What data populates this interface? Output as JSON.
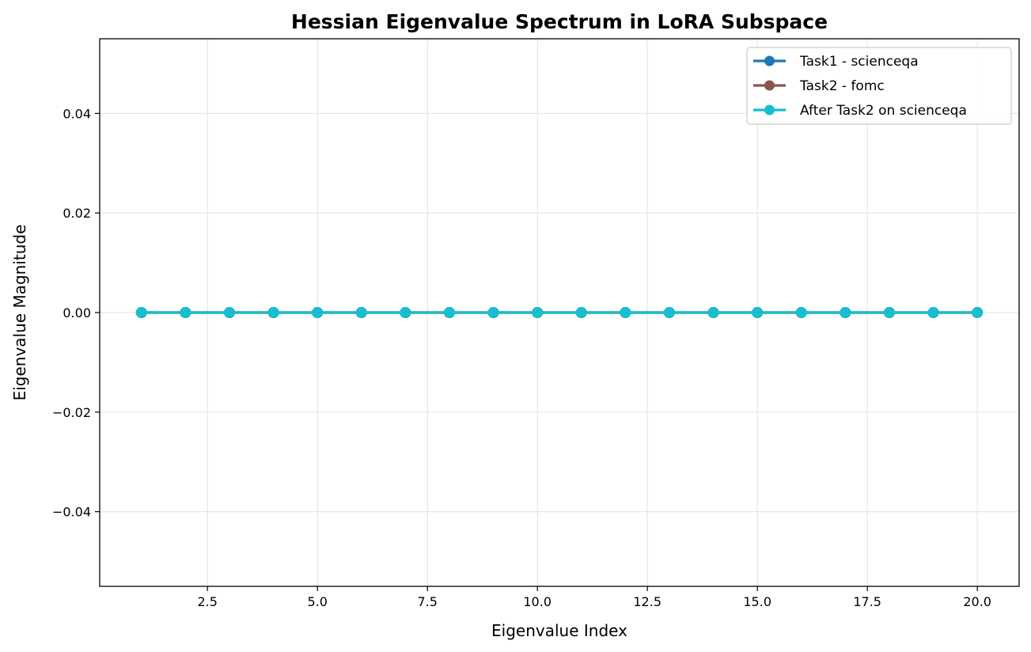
{
  "chart_data": {
    "type": "line",
    "title": "Hessian Eigenvalue Spectrum in LoRA Subspace",
    "xlabel": "Eigenvalue Index",
    "ylabel": "Eigenvalue Magnitude",
    "xlim": [
      0.05,
      20.95
    ],
    "ylim": [
      -0.055,
      0.055
    ],
    "xticks": [
      2.5,
      5.0,
      7.5,
      10.0,
      12.5,
      15.0,
      17.5,
      20.0
    ],
    "xtick_labels": [
      "2.5",
      "5.0",
      "7.5",
      "10.0",
      "12.5",
      "15.0",
      "17.5",
      "20.0"
    ],
    "yticks": [
      -0.04,
      -0.02,
      0.0,
      0.02,
      0.04
    ],
    "ytick_labels": [
      "−0.04",
      "−0.02",
      "0.00",
      "0.02",
      "0.04"
    ],
    "grid": true,
    "legend_position": "top-right",
    "x": [
      1,
      2,
      3,
      4,
      5,
      6,
      7,
      8,
      9,
      10,
      11,
      12,
      13,
      14,
      15,
      16,
      17,
      18,
      19,
      20
    ],
    "series": [
      {
        "name": "Task1 - scienceqa",
        "color": "#1f77b4",
        "values": [
          0,
          0,
          0,
          0,
          0,
          0,
          0,
          0,
          0,
          0,
          0,
          0,
          0,
          0,
          0,
          0,
          0,
          0,
          0,
          0
        ]
      },
      {
        "name": "Task2 - fomc",
        "color": "#8c564b",
        "values": [
          0,
          0,
          0,
          0,
          0,
          0,
          0,
          0,
          0,
          0,
          0,
          0,
          0,
          0,
          0,
          0,
          0,
          0,
          0,
          0
        ]
      },
      {
        "name": "After Task2 on scienceqa",
        "color": "#17becf",
        "values": [
          0,
          0,
          0,
          0,
          0,
          0,
          0,
          0,
          0,
          0,
          0,
          0,
          0,
          0,
          0,
          0,
          0,
          0,
          0,
          0
        ]
      }
    ]
  }
}
